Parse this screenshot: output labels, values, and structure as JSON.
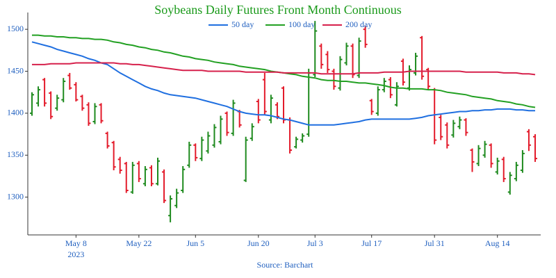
{
  "chart_data": {
    "type": "ohlc",
    "title": "Soybeans Daily Futures Front Month Continuous",
    "source": "Source: Barchart",
    "year_label": "2023",
    "categories": [
      null,
      null,
      null,
      null,
      null,
      null,
      null,
      "May 8",
      null,
      null,
      null,
      null,
      null,
      null,
      null,
      null,
      null,
      "May 22",
      null,
      null,
      null,
      null,
      null,
      null,
      null,
      null,
      "Jun 5",
      null,
      null,
      null,
      null,
      null,
      null,
      null,
      null,
      null,
      "Jun 20",
      null,
      null,
      null,
      null,
      null,
      null,
      null,
      null,
      "Jul 3",
      null,
      null,
      null,
      null,
      null,
      null,
      null,
      null,
      "Jul 17",
      null,
      null,
      null,
      null,
      null,
      null,
      null,
      null,
      null,
      "Jul 31",
      null,
      null,
      null,
      null,
      null,
      null,
      null,
      null,
      null,
      "Aug 14",
      null,
      null,
      null,
      null,
      null,
      null
    ],
    "ohlc": [
      {
        "open": 1400,
        "high": 1425,
        "low": 1397,
        "close": 1422
      },
      {
        "open": 1412,
        "high": 1432,
        "low": 1408,
        "close": 1428
      },
      {
        "open": 1440,
        "high": 1442,
        "low": 1408,
        "close": 1412
      },
      {
        "open": 1424,
        "high": 1426,
        "low": 1393,
        "close": 1396
      },
      {
        "open": 1406,
        "high": 1422,
        "low": 1403,
        "close": 1418
      },
      {
        "open": 1416,
        "high": 1442,
        "low": 1413,
        "close": 1438
      },
      {
        "open": 1445,
        "high": 1448,
        "low": 1428,
        "close": 1430
      },
      {
        "open": 1434,
        "high": 1437,
        "low": 1414,
        "close": 1416
      },
      {
        "open": 1420,
        "high": 1422,
        "low": 1403,
        "close": 1406
      },
      {
        "open": 1410,
        "high": 1413,
        "low": 1385,
        "close": 1388
      },
      {
        "open": 1390,
        "high": 1412,
        "low": 1387,
        "close": 1408
      },
      {
        "open": 1410,
        "high": 1412,
        "low": 1388,
        "close": 1391
      },
      {
        "open": 1376,
        "high": 1378,
        "low": 1358,
        "close": 1361
      },
      {
        "open": 1365,
        "high": 1367,
        "low": 1332,
        "close": 1336
      },
      {
        "open": 1345,
        "high": 1348,
        "low": 1328,
        "close": 1332
      },
      {
        "open": 1340,
        "high": 1342,
        "low": 1305,
        "close": 1308
      },
      {
        "open": 1306,
        "high": 1342,
        "low": 1304,
        "close": 1338
      },
      {
        "open": 1340,
        "high": 1343,
        "low": 1318,
        "close": 1322
      },
      {
        "open": 1316,
        "high": 1337,
        "low": 1313,
        "close": 1333
      },
      {
        "open": 1335,
        "high": 1338,
        "low": 1313,
        "close": 1316
      },
      {
        "open": 1316,
        "high": 1347,
        "low": 1314,
        "close": 1343
      },
      {
        "open": 1330,
        "high": 1333,
        "low": 1293,
        "close": 1296
      },
      {
        "open": 1278,
        "high": 1302,
        "low": 1270,
        "close": 1298
      },
      {
        "open": 1290,
        "high": 1310,
        "low": 1287,
        "close": 1305
      },
      {
        "open": 1308,
        "high": 1337,
        "low": 1305,
        "close": 1333
      },
      {
        "open": 1338,
        "high": 1366,
        "low": 1335,
        "close": 1362
      },
      {
        "open": 1362,
        "high": 1364,
        "low": 1343,
        "close": 1347
      },
      {
        "open": 1346,
        "high": 1372,
        "low": 1343,
        "close": 1368
      },
      {
        "open": 1355,
        "high": 1378,
        "low": 1352,
        "close": 1373
      },
      {
        "open": 1362,
        "high": 1387,
        "low": 1359,
        "close": 1383
      },
      {
        "open": 1366,
        "high": 1397,
        "low": 1363,
        "close": 1393
      },
      {
        "open": 1400,
        "high": 1402,
        "low": 1373,
        "close": 1377
      },
      {
        "open": 1376,
        "high": 1416,
        "low": 1373,
        "close": 1412
      },
      {
        "open": 1402,
        "high": 1404,
        "low": 1383,
        "close": 1386
      },
      {
        "open": 1320,
        "high": 1372,
        "low": 1318,
        "close": 1368
      },
      {
        "open": 1370,
        "high": 1388,
        "low": 1367,
        "close": 1384
      },
      {
        "open": 1414,
        "high": 1417,
        "low": 1388,
        "close": 1392
      },
      {
        "open": 1440,
        "high": 1448,
        "low": 1398,
        "close": 1402
      },
      {
        "open": 1392,
        "high": 1422,
        "low": 1388,
        "close": 1418
      },
      {
        "open": 1410,
        "high": 1413,
        "low": 1393,
        "close": 1396
      },
      {
        "open": 1430,
        "high": 1432,
        "low": 1388,
        "close": 1392
      },
      {
        "open": 1392,
        "high": 1395,
        "low": 1352,
        "close": 1356
      },
      {
        "open": 1360,
        "high": 1372,
        "low": 1358,
        "close": 1369
      },
      {
        "open": 1368,
        "high": 1376,
        "low": 1365,
        "close": 1373
      },
      {
        "open": 1375,
        "high": 1453,
        "low": 1372,
        "close": 1448
      },
      {
        "open": 1446,
        "high": 1510,
        "low": 1443,
        "close": 1498
      },
      {
        "open": 1480,
        "high": 1483,
        "low": 1453,
        "close": 1458
      },
      {
        "open": 1470,
        "high": 1474,
        "low": 1448,
        "close": 1452
      },
      {
        "open": 1450,
        "high": 1453,
        "low": 1428,
        "close": 1432
      },
      {
        "open": 1430,
        "high": 1468,
        "low": 1427,
        "close": 1464
      },
      {
        "open": 1460,
        "high": 1484,
        "low": 1457,
        "close": 1480
      },
      {
        "open": 1480,
        "high": 1483,
        "low": 1442,
        "close": 1446
      },
      {
        "open": 1445,
        "high": 1490,
        "low": 1442,
        "close": 1486
      },
      {
        "open": 1500,
        "high": 1504,
        "low": 1478,
        "close": 1482
      },
      {
        "open": 1415,
        "high": 1417,
        "low": 1398,
        "close": 1402
      },
      {
        "open": 1400,
        "high": 1432,
        "low": 1397,
        "close": 1428
      },
      {
        "open": 1428,
        "high": 1442,
        "low": 1425,
        "close": 1438
      },
      {
        "open": 1440,
        "high": 1443,
        "low": 1418,
        "close": 1422
      },
      {
        "open": 1410,
        "high": 1437,
        "low": 1408,
        "close": 1432
      },
      {
        "open": 1462,
        "high": 1465,
        "low": 1433,
        "close": 1437
      },
      {
        "open": 1430,
        "high": 1457,
        "low": 1427,
        "close": 1452
      },
      {
        "open": 1448,
        "high": 1472,
        "low": 1445,
        "close": 1468
      },
      {
        "open": 1490,
        "high": 1492,
        "low": 1440,
        "close": 1444
      },
      {
        "open": 1452,
        "high": 1454,
        "low": 1428,
        "close": 1432
      },
      {
        "open": 1428,
        "high": 1430,
        "low": 1363,
        "close": 1368
      },
      {
        "open": 1395,
        "high": 1398,
        "low": 1368,
        "close": 1372
      },
      {
        "open": 1386,
        "high": 1389,
        "low": 1358,
        "close": 1362
      },
      {
        "open": 1374,
        "high": 1392,
        "low": 1371,
        "close": 1388
      },
      {
        "open": 1384,
        "high": 1396,
        "low": 1381,
        "close": 1392
      },
      {
        "open": 1392,
        "high": 1394,
        "low": 1373,
        "close": 1377
      },
      {
        "open": 1356,
        "high": 1358,
        "low": 1330,
        "close": 1342
      },
      {
        "open": 1340,
        "high": 1362,
        "low": 1337,
        "close": 1358
      },
      {
        "open": 1350,
        "high": 1367,
        "low": 1347,
        "close": 1363
      },
      {
        "open": 1362,
        "high": 1364,
        "low": 1335,
        "close": 1340
      },
      {
        "open": 1330,
        "high": 1347,
        "low": 1327,
        "close": 1343
      },
      {
        "open": 1345,
        "high": 1348,
        "low": 1318,
        "close": 1322
      },
      {
        "open": 1306,
        "high": 1330,
        "low": 1303,
        "close": 1326
      },
      {
        "open": 1322,
        "high": 1342,
        "low": 1319,
        "close": 1338
      },
      {
        "open": 1332,
        "high": 1356,
        "low": 1329,
        "close": 1352
      },
      {
        "open": 1378,
        "high": 1381,
        "low": 1355,
        "close": 1362
      },
      {
        "open": 1372,
        "high": 1375,
        "low": 1342,
        "close": 1346
      }
    ],
    "up_color": "#1e8a1e",
    "down_color": "#e31a2a",
    "series": [
      {
        "name": "50 day",
        "color": "#1f6fe0",
        "values": [
          1485,
          1483,
          1481,
          1479,
          1476,
          1474,
          1472,
          1470,
          1468,
          1465,
          1463,
          1460,
          1458,
          1453,
          1448,
          1444,
          1440,
          1436,
          1432,
          1429,
          1427,
          1424,
          1422,
          1421,
          1420,
          1419,
          1418,
          1416,
          1414,
          1412,
          1410,
          1408,
          1405,
          1402,
          1400,
          1399,
          1398,
          1398,
          1397,
          1395,
          1393,
          1392,
          1390,
          1388,
          1386,
          1386,
          1386,
          1386,
          1386,
          1387,
          1388,
          1389,
          1390,
          1392,
          1393,
          1393,
          1393,
          1393,
          1393,
          1393,
          1393,
          1394,
          1395,
          1397,
          1398,
          1399,
          1400,
          1401,
          1402,
          1402,
          1403,
          1403,
          1404,
          1404,
          1405,
          1405,
          1405,
          1404,
          1404,
          1403,
          1403
        ]
      },
      {
        "name": "100 day",
        "color": "#22a022",
        "values": [
          1493,
          1493,
          1492,
          1492,
          1491,
          1491,
          1490,
          1490,
          1489,
          1489,
          1488,
          1488,
          1487,
          1485,
          1484,
          1482,
          1481,
          1479,
          1478,
          1476,
          1475,
          1473,
          1472,
          1470,
          1468,
          1467,
          1465,
          1464,
          1463,
          1461,
          1460,
          1459,
          1458,
          1456,
          1455,
          1454,
          1453,
          1452,
          1450,
          1449,
          1448,
          1447,
          1446,
          1444,
          1443,
          1442,
          1440,
          1439,
          1439,
          1438,
          1438,
          1437,
          1436,
          1436,
          1435,
          1434,
          1433,
          1431,
          1430,
          1430,
          1429,
          1429,
          1429,
          1428,
          1428,
          1427,
          1425,
          1424,
          1423,
          1422,
          1420,
          1419,
          1418,
          1417,
          1415,
          1414,
          1413,
          1411,
          1410,
          1408,
          1407
        ]
      },
      {
        "name": "200 day",
        "color": "#d6204b",
        "values": [
          1458,
          1458,
          1458,
          1459,
          1459,
          1459,
          1459,
          1460,
          1460,
          1460,
          1460,
          1460,
          1460,
          1460,
          1459,
          1459,
          1458,
          1458,
          1457,
          1456,
          1455,
          1454,
          1453,
          1452,
          1451,
          1451,
          1451,
          1451,
          1450,
          1450,
          1450,
          1450,
          1450,
          1450,
          1449,
          1449,
          1449,
          1449,
          1449,
          1449,
          1448,
          1448,
          1448,
          1448,
          1448,
          1448,
          1447,
          1447,
          1447,
          1447,
          1447,
          1447,
          1448,
          1448,
          1448,
          1448,
          1449,
          1449,
          1449,
          1449,
          1450,
          1450,
          1450,
          1450,
          1450,
          1450,
          1450,
          1450,
          1450,
          1449,
          1449,
          1449,
          1449,
          1449,
          1449,
          1448,
          1448,
          1448,
          1447,
          1447,
          1446
        ]
      }
    ],
    "ylim": [
      1255,
      1520
    ],
    "yticks": [
      1300,
      1350,
      1400,
      1450,
      1500
    ]
  }
}
